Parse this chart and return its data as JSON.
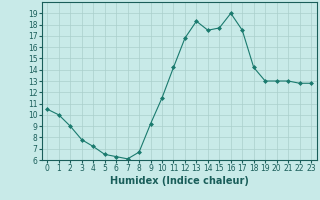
{
  "x": [
    0,
    1,
    2,
    3,
    4,
    5,
    6,
    7,
    8,
    9,
    10,
    11,
    12,
    13,
    14,
    15,
    16,
    17,
    18,
    19,
    20,
    21,
    22,
    23
  ],
  "y": [
    10.5,
    10.0,
    9.0,
    7.8,
    7.2,
    6.5,
    6.3,
    6.1,
    6.7,
    9.2,
    11.5,
    14.2,
    16.8,
    18.3,
    17.5,
    17.7,
    19.0,
    17.5,
    14.2,
    13.0,
    13.0,
    13.0,
    12.8,
    12.8
  ],
  "line_color": "#1a7a6e",
  "marker": "D",
  "marker_size": 2.0,
  "bg_color": "#c8eae8",
  "grid_color": "#aacfcc",
  "xlabel": "Humidex (Indice chaleur)",
  "ylim": [
    6,
    20
  ],
  "xlim": [
    -0.5,
    23.5
  ],
  "yticks": [
    6,
    7,
    8,
    9,
    10,
    11,
    12,
    13,
    14,
    15,
    16,
    17,
    18,
    19
  ],
  "xticks": [
    0,
    1,
    2,
    3,
    4,
    5,
    6,
    7,
    8,
    9,
    10,
    11,
    12,
    13,
    14,
    15,
    16,
    17,
    18,
    19,
    20,
    21,
    22,
    23
  ],
  "tick_color": "#1a5e5a",
  "label_fontsize": 5.5,
  "xlabel_fontsize": 7.0,
  "linewidth": 0.8
}
